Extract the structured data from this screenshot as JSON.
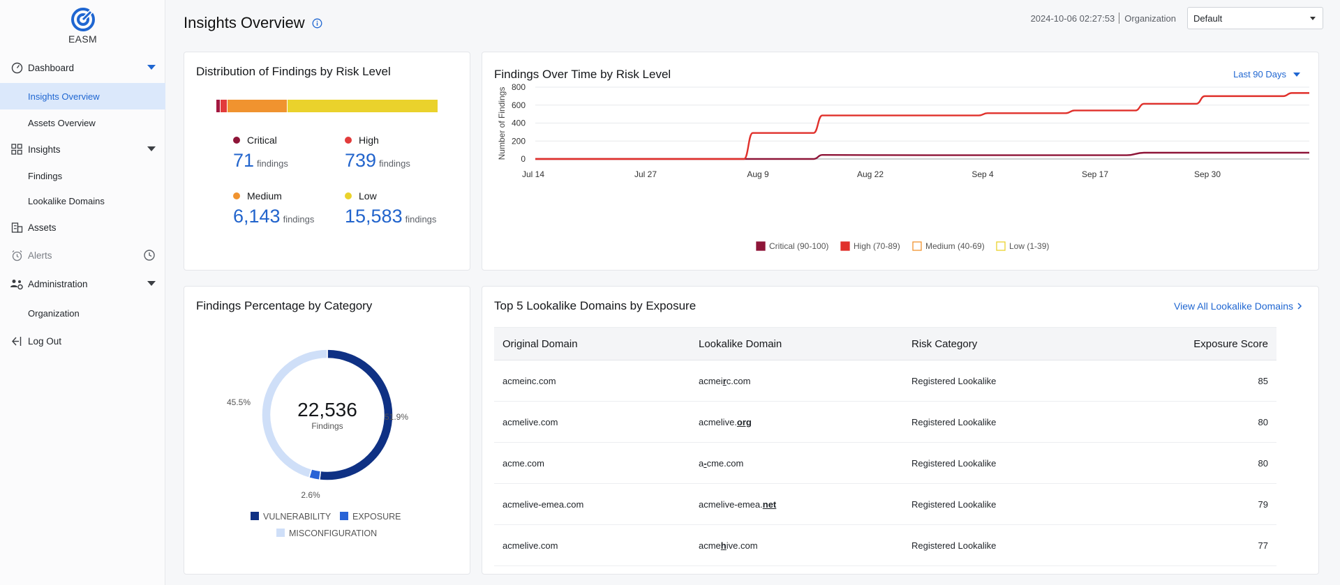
{
  "app": {
    "name": "EASM"
  },
  "sidebar": {
    "dashboard": {
      "label": "Dashboard",
      "subitems": [
        {
          "label": "Insights Overview",
          "active": true
        },
        {
          "label": "Assets Overview",
          "active": false
        }
      ]
    },
    "insights": {
      "label": "Insights",
      "subitems": [
        {
          "label": "Findings"
        },
        {
          "label": "Lookalike Domains"
        }
      ]
    },
    "assets": {
      "label": "Assets"
    },
    "alerts": {
      "label": "Alerts"
    },
    "administration": {
      "label": "Administration",
      "subitems": [
        {
          "label": "Organization"
        }
      ]
    },
    "logout": {
      "label": "Log Out"
    }
  },
  "header": {
    "title": "Insights Overview",
    "timestamp": "2024-10-06 02:27:53",
    "org_label": "Organization",
    "org_value": "Default"
  },
  "distribution": {
    "title": "Distribution of Findings by Risk Level",
    "colors": {
      "critical": "#a3173f",
      "high": "#e23b3b",
      "medium": "#f0932f",
      "low": "#ead22c"
    },
    "items": [
      {
        "label": "Critical",
        "value": "71",
        "unit": "findings"
      },
      {
        "label": "High",
        "value": "739",
        "unit": "findings"
      },
      {
        "label": "Medium",
        "value": "6,143",
        "unit": "findings"
      },
      {
        "label": "Low",
        "value": "15,583",
        "unit": "findings"
      }
    ]
  },
  "findings_over_time": {
    "title": "Findings Over Time by Risk Level",
    "range": "Last 90 Days",
    "chart_data": {
      "type": "line",
      "ylabel": "Number of Findings",
      "ylim": [
        0,
        800
      ],
      "yticks": [
        0,
        200,
        400,
        600,
        800
      ],
      "xticks": [
        "Jul 14",
        "Jul 27",
        "Aug 9",
        "Aug 22",
        "Sep 4",
        "Sep 17",
        "Sep 30"
      ],
      "x_range_days": [
        0,
        89
      ],
      "series": [
        {
          "name": "Critical (90-100)",
          "color": "#8e1538",
          "x": [
            0,
            27,
            32,
            33,
            45,
            58,
            68,
            70,
            89
          ],
          "y": [
            0,
            0,
            0,
            45,
            42,
            42,
            42,
            70,
            70
          ]
        },
        {
          "name": "High (70-89)",
          "color": "#e0302b",
          "x": [
            0,
            24,
            25,
            32,
            33,
            51,
            52,
            61,
            62,
            69,
            70,
            76,
            77,
            86,
            87,
            89
          ],
          "y": [
            0,
            0,
            290,
            290,
            485,
            485,
            510,
            510,
            540,
            540,
            615,
            615,
            700,
            700,
            735,
            735
          ]
        },
        {
          "name": "Medium (40-69)",
          "color": "#f0932f",
          "x": [],
          "y": []
        },
        {
          "name": "Low (1-39)",
          "color": "#ead22c",
          "x": [],
          "y": []
        }
      ]
    }
  },
  "category": {
    "title": "Findings Percentage by Category",
    "total": "22,536",
    "total_label": "Findings",
    "chart_data": {
      "type": "pie",
      "categories": [
        "VULNERABILITY",
        "EXPOSURE",
        "MISCONFIGURATION"
      ],
      "values": [
        51.9,
        2.6,
        45.5
      ],
      "labels": [
        "51.9%",
        "2.6%",
        "45.5%"
      ],
      "colors": [
        "#0f3184",
        "#2863d6",
        "#cfdff8"
      ]
    }
  },
  "lookalike": {
    "title": "Top 5 Lookalike Domains by Exposure",
    "view_all": "View All Lookalike Domains",
    "columns": [
      "Original Domain",
      "Lookalike Domain",
      "Risk Category",
      "Exposure Score"
    ],
    "rows": [
      {
        "original": "acmeinc.com",
        "look_pre": "acmei",
        "look_hl": "r",
        "look_post": "c.com",
        "risk": "Registered Lookalike",
        "score": "85"
      },
      {
        "original": "acmelive.com",
        "look_pre": "acmelive.",
        "look_hl": "org",
        "look_post": "",
        "risk": "Registered Lookalike",
        "score": "80"
      },
      {
        "original": "acme.com",
        "look_pre": "a",
        "look_hl": "-",
        "look_post": "cme.com",
        "risk": "Registered Lookalike",
        "score": "80"
      },
      {
        "original": "acmelive-emea.com",
        "look_pre": "acmelive-emea.",
        "look_hl": "net",
        "look_post": "",
        "risk": "Registered Lookalike",
        "score": "79"
      },
      {
        "original": "acmelive.com",
        "look_pre": "acme",
        "look_hl": "h",
        "look_post": "ive.com",
        "risk": "Registered Lookalike",
        "score": "77"
      }
    ]
  }
}
